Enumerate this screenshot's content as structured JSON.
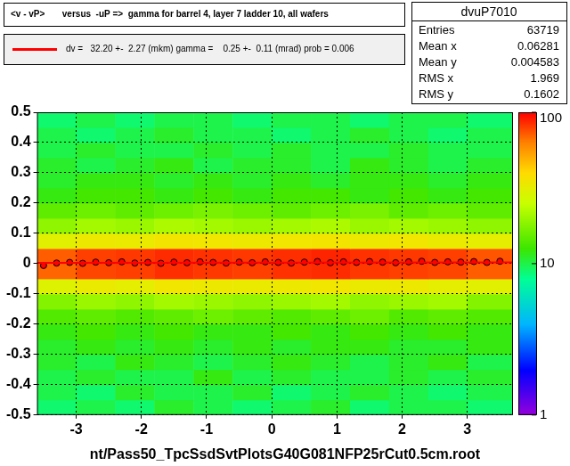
{
  "chart_data": {
    "type": "scatter",
    "title": "<v - vP>       versus  -uP =>  gamma for barrel 4, layer 7 ladder 10, all wafers",
    "footer": "nt/Pass50_TpcSsdSvtPlotsG40G081NFP25rCut0.5cm.root",
    "xlim": [
      -3.6,
      3.7
    ],
    "ylim": [
      -0.5,
      0.5
    ],
    "xticks": [
      -3,
      -2,
      -1,
      0,
      1,
      2,
      3
    ],
    "yticks": [
      -0.5,
      -0.4,
      -0.3,
      -0.2,
      -0.1,
      0,
      0.1,
      0.2,
      0.3,
      0.4,
      0.5
    ],
    "grid": true,
    "profile": {
      "marker": "circle",
      "color": "#ff0000",
      "x": [
        -3.5,
        -3.3,
        -3.1,
        -2.9,
        -2.7,
        -2.5,
        -2.3,
        -2.1,
        -1.9,
        -1.7,
        -1.5,
        -1.3,
        -1.1,
        -0.9,
        -0.7,
        -0.5,
        -0.3,
        -0.1,
        0.1,
        0.3,
        0.5,
        0.7,
        0.9,
        1.1,
        1.3,
        1.5,
        1.7,
        1.9,
        2.1,
        2.3,
        2.5,
        2.7,
        2.9,
        3.1,
        3.3,
        3.5
      ],
      "values": [
        -0.006,
        0.002,
        0.004,
        0.001,
        0.005,
        0.003,
        0.006,
        0.002,
        0.004,
        0.001,
        0.005,
        0.003,
        0.006,
        0.004,
        0.002,
        0.005,
        0.003,
        0.006,
        0.004,
        0.002,
        0.005,
        0.007,
        0.003,
        0.006,
        0.004,
        0.007,
        0.005,
        0.003,
        0.006,
        0.008,
        0.004,
        0.006,
        0.005,
        0.007,
        0.004,
        0.008
      ]
    },
    "fit": {
      "color": "#ff0000",
      "line_style": "solid",
      "x": [
        -3.6,
        3.7
      ],
      "values": [
        0.0023,
        0.0041
      ],
      "label": "dv =   32.20 +-  2.27 (mkm) gamma =    0.25 +-  0.11 (mrad) prob = 0.006"
    },
    "stats": {
      "title": "dvuP7010",
      "rows": [
        [
          "Entries",
          "63719"
        ],
        [
          "Mean x",
          "0.06281"
        ],
        [
          "Mean y",
          "0.004583"
        ],
        [
          "RMS x",
          "1.969"
        ],
        [
          "RMS y",
          "0.1602"
        ]
      ]
    },
    "heatmap": {
      "xbins": [
        -3.6,
        -3.0,
        -2.4,
        -1.8,
        -1.2,
        -0.6,
        0,
        0.6,
        1.2,
        1.8,
        2.4,
        3.0,
        3.7
      ],
      "ybins": [
        -0.5,
        -0.45,
        -0.4,
        -0.35,
        -0.3,
        -0.25,
        -0.2,
        -0.15,
        -0.1,
        -0.05,
        0,
        0.05,
        0.1,
        0.15,
        0.2,
        0.25,
        0.3,
        0.35,
        0.4,
        0.45,
        0.5
      ],
      "counts": [
        [
          9,
          10,
          9,
          11,
          10,
          9,
          10,
          11,
          9,
          10,
          10,
          9
        ],
        [
          10,
          9,
          11,
          10,
          10,
          11,
          9,
          10,
          11,
          10,
          9,
          10
        ],
        [
          10,
          11,
          10,
          10,
          12,
          10,
          11,
          10,
          10,
          11,
          10,
          11
        ],
        [
          11,
          10,
          12,
          11,
          10,
          11,
          12,
          11,
          10,
          11,
          12,
          10
        ],
        [
          11,
          12,
          11,
          12,
          11,
          12,
          11,
          12,
          12,
          11,
          11,
          12
        ],
        [
          12,
          13,
          12,
          13,
          12,
          12,
          13,
          12,
          13,
          12,
          13,
          12
        ],
        [
          14,
          15,
          14,
          15,
          16,
          15,
          14,
          15,
          16,
          14,
          15,
          14
        ],
        [
          18,
          20,
          19,
          21,
          20,
          19,
          20,
          21,
          19,
          20,
          21,
          18
        ],
        [
          30,
          33,
          32,
          35,
          34,
          33,
          34,
          35,
          33,
          34,
          32,
          31
        ],
        [
          70,
          78,
          80,
          85,
          82,
          80,
          84,
          86,
          82,
          80,
          78,
          72
        ],
        [
          72,
          80,
          82,
          86,
          84,
          82,
          85,
          88,
          84,
          82,
          80,
          74
        ],
        [
          31,
          34,
          33,
          36,
          35,
          34,
          35,
          36,
          34,
          35,
          33,
          32
        ],
        [
          19,
          21,
          20,
          22,
          21,
          20,
          21,
          22,
          20,
          21,
          20,
          19
        ],
        [
          15,
          16,
          15,
          16,
          17,
          16,
          15,
          16,
          17,
          15,
          16,
          15
        ],
        [
          12,
          13,
          13,
          12,
          13,
          12,
          13,
          13,
          12,
          13,
          12,
          13
        ],
        [
          11,
          12,
          12,
          11,
          12,
          11,
          12,
          11,
          12,
          12,
          11,
          12
        ],
        [
          11,
          10,
          11,
          12,
          10,
          11,
          11,
          10,
          12,
          11,
          10,
          11
        ],
        [
          10,
          11,
          10,
          10,
          11,
          10,
          11,
          10,
          10,
          11,
          10,
          10
        ],
        [
          10,
          9,
          10,
          11,
          10,
          10,
          9,
          10,
          11,
          10,
          9,
          10
        ],
        [
          9,
          10,
          9,
          10,
          10,
          9,
          10,
          10,
          9,
          10,
          10,
          9
        ]
      ]
    },
    "colorbar": {
      "range": [
        1,
        100
      ],
      "ticks": [
        1,
        10,
        100
      ]
    }
  }
}
